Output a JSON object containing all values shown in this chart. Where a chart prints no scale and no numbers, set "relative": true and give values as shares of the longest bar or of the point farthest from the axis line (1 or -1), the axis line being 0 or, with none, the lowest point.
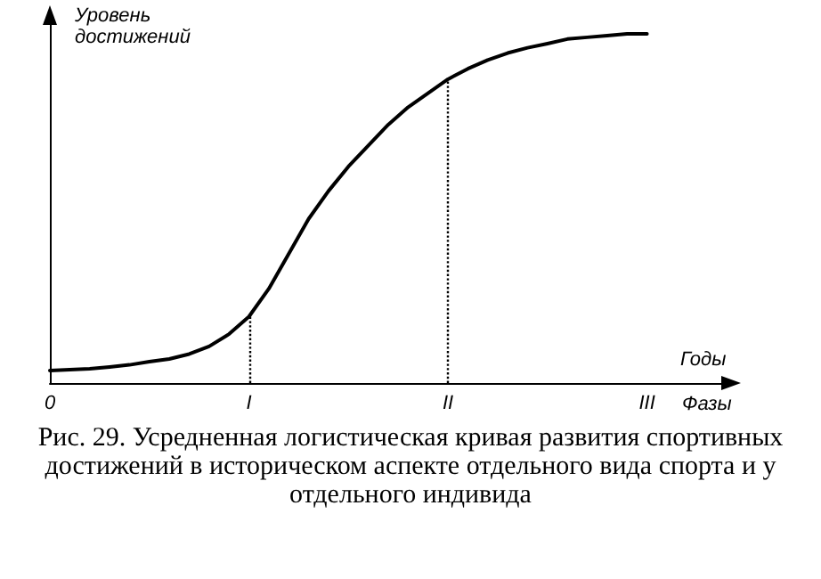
{
  "chart_data": {
    "type": "line",
    "relative": true,
    "ylabel": "Уровень достижений",
    "xlabel": "Годы",
    "annotations": [
      "Фазы",
      "Рис. 29. Усредненная логистическая кривая развития спортивных достижений в историческом аспекте отдельного вида спорта и у отдельного индивида"
    ],
    "categories": [
      "0",
      null,
      null,
      null,
      null,
      null,
      null,
      null,
      null,
      null,
      "I",
      null,
      null,
      null,
      null,
      null,
      null,
      null,
      null,
      null,
      "II",
      null,
      null,
      null,
      null,
      null,
      null,
      null,
      null,
      null,
      "III",
      null,
      null,
      null,
      null
    ],
    "series": [
      {
        "color": "#000000",
        "values": [
          0.036,
          0.038,
          0.041,
          0.046,
          0.052,
          0.061,
          0.069,
          0.083,
          0.105,
          0.14,
          0.19,
          0.27,
          0.37,
          0.47,
          0.55,
          0.62,
          0.68,
          0.74,
          0.79,
          0.83,
          0.87,
          0.9,
          0.925,
          0.945,
          0.96,
          0.972,
          0.985,
          0.99,
          0.995,
          1,
          1,
          null,
          null,
          null,
          null
        ]
      }
    ],
    "ref_lines": [
      {
        "axis": "x",
        "value": "I",
        "color": "#000000",
        "line_style": "dotted"
      },
      {
        "axis": "x",
        "value": "II",
        "color": "#000000",
        "line_style": "dotted"
      }
    ],
    "grid": false,
    "marker": "none",
    "line_style": "solid"
  }
}
